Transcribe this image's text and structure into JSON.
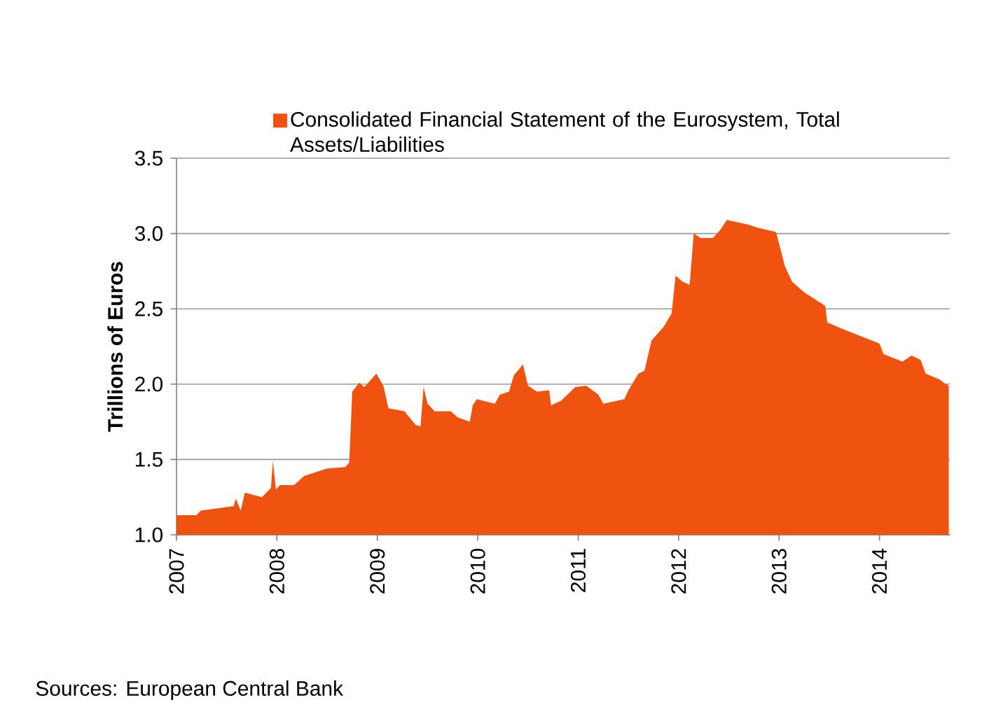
{
  "chart_data": {
    "type": "area",
    "ylabel": "Trillions of Euros",
    "annotations": [
      "Sources: European Central Bank"
    ],
    "legend": "top",
    "grid": "y",
    "xlim": [
      2007,
      2014.7
    ],
    "ylim": [
      1.0,
      3.5
    ],
    "xticks": [
      2007,
      2008,
      2009,
      2010,
      2011,
      2012,
      2013,
      2014
    ],
    "yticks": [
      {
        "value": 1.0,
        "label": "1.0"
      },
      {
        "value": 1.5,
        "label": "1.5"
      },
      {
        "value": 2.0,
        "label": "2.0"
      },
      {
        "value": 2.5,
        "label": "2.5"
      },
      {
        "value": 3.0,
        "label": "3.0"
      },
      {
        "value": 3.5,
        "label": "3.5"
      }
    ],
    "series": [
      {
        "name": "Consolidated Financial Statement of the Eurosystem, Total Assets/Liabilities",
        "color": "#f0520f",
        "x": [
          2007.0,
          2007.2,
          2007.24,
          2007.57,
          2007.59,
          2007.64,
          2007.68,
          2007.85,
          2007.94,
          2007.96,
          2007.99,
          2008.03,
          2008.17,
          2008.27,
          2008.5,
          2008.68,
          2008.72,
          2008.75,
          2008.82,
          2008.87,
          2008.99,
          2009.06,
          2009.11,
          2009.27,
          2009.38,
          2009.43,
          2009.46,
          2009.5,
          2009.57,
          2009.73,
          2009.8,
          2009.92,
          2009.95,
          2009.99,
          2010.17,
          2010.22,
          2010.31,
          2010.36,
          2010.45,
          2010.5,
          2010.59,
          2010.71,
          2010.73,
          2010.83,
          2010.97,
          2011.08,
          2011.2,
          2011.25,
          2011.46,
          2011.5,
          2011.6,
          2011.66,
          2011.73,
          2011.85,
          2011.93,
          2011.97,
          2012.04,
          2012.11,
          2012.15,
          2012.22,
          2012.34,
          2012.41,
          2012.48,
          2012.69,
          2012.78,
          2012.97,
          2013.06,
          2013.13,
          2013.25,
          2013.39,
          2013.46,
          2013.48,
          2013.62,
          2013.81,
          2014.0,
          2014.04,
          2014.23,
          2014.32,
          2014.41,
          2014.46,
          2014.6,
          2014.64,
          2014.69
        ],
        "values": [
          1.13,
          1.13,
          1.16,
          1.19,
          1.24,
          1.16,
          1.28,
          1.25,
          1.31,
          1.49,
          1.3,
          1.33,
          1.33,
          1.39,
          1.44,
          1.45,
          1.48,
          1.95,
          2.01,
          1.98,
          2.07,
          1.99,
          1.84,
          1.82,
          1.73,
          1.72,
          1.98,
          1.87,
          1.82,
          1.82,
          1.78,
          1.75,
          1.86,
          1.9,
          1.87,
          1.93,
          1.95,
          2.06,
          2.13,
          1.99,
          1.95,
          1.96,
          1.86,
          1.89,
          1.98,
          1.99,
          1.93,
          1.87,
          1.9,
          1.96,
          2.07,
          2.09,
          2.29,
          2.38,
          2.47,
          2.72,
          2.68,
          2.66,
          3.0,
          2.97,
          2.97,
          3.02,
          3.09,
          3.06,
          3.04,
          3.01,
          2.78,
          2.68,
          2.61,
          2.55,
          2.52,
          2.41,
          2.37,
          2.32,
          2.27,
          2.2,
          2.15,
          2.19,
          2.16,
          2.07,
          2.03,
          2.01,
          1.99
        ]
      }
    ]
  }
}
